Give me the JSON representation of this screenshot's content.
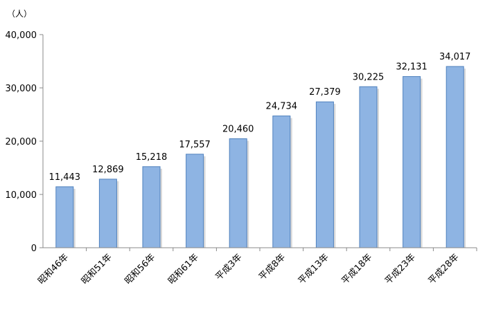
{
  "chart_data": {
    "type": "bar",
    "unit": "（人）",
    "categories": [
      "昭和46年",
      "昭和51年",
      "昭和56年",
      "昭和61年",
      "平成3年",
      "平成8年",
      "平成13年",
      "平成18年",
      "平成23年",
      "平成28年"
    ],
    "values": [
      11443,
      12869,
      15218,
      17557,
      20460,
      24734,
      27379,
      30225,
      32131,
      34017
    ],
    "data_labels": [
      "11,443",
      "12,869",
      "15,218",
      "17,557",
      "20,460",
      "24,734",
      "27,379",
      "30,225",
      "32,131",
      "34,017"
    ],
    "ylim": [
      0,
      40000
    ],
    "yticks": [
      0,
      10000,
      20000,
      30000,
      40000
    ],
    "ytick_labels": [
      "0",
      "10,000",
      "20,000",
      "30,000",
      "40,000"
    ],
    "bar_color": "#8EB4E3",
    "bar_edge_color": "#4F81BD",
    "grid": false,
    "legend": "none"
  }
}
